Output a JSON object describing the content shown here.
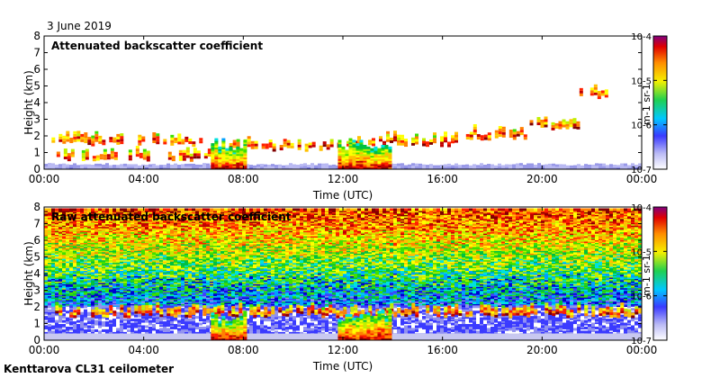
{
  "date_label": "3 June 2019",
  "footer": "Kenttarova CL31 ceilometer",
  "chart_data": [
    {
      "type": "heatmap",
      "title": "Attenuated backscatter coefficient",
      "xlabel": "Time (UTC)",
      "ylabel": "Height (km)",
      "xlim": [
        0,
        24
      ],
      "ylim": [
        0,
        8
      ],
      "x_ticks": [
        0,
        4,
        8,
        12,
        16,
        20,
        24
      ],
      "x_tick_labels": [
        "00:00",
        "04:00",
        "08:00",
        "12:00",
        "16:00",
        "20:00",
        "00:00"
      ],
      "y_ticks": [
        0,
        1,
        2,
        3,
        4,
        5,
        6,
        7,
        8
      ],
      "y_tick_labels": [
        "0",
        "1",
        "2",
        "3",
        "4",
        "5",
        "6",
        "7",
        "8"
      ],
      "colorbar": {
        "scale": "log",
        "range": [
          1e-07,
          0.0001
        ],
        "tick_labels": [
          "10-7",
          "10-6",
          "10-5",
          "10-4"
        ],
        "unit_label": "m-1 sr-1"
      },
      "features": [
        {
          "name": "boundary layer",
          "t_start": 0,
          "t_end": 24,
          "h_top_km": 0.3
        },
        {
          "name": "cloud layer",
          "t_start": 0.3,
          "t_end": 6.5,
          "h_km": 1.6
        },
        {
          "name": "low cloud",
          "t_start": 0.5,
          "t_end": 7.0,
          "h_km": 0.7
        },
        {
          "name": "cloud layer",
          "t_start": 7.0,
          "t_end": 12.0,
          "h_km": 1.3
        },
        {
          "name": "precipitation",
          "t_start": 6.7,
          "t_end": 8.1,
          "h_km": 0.5
        },
        {
          "name": "cloud layer",
          "t_start": 12.0,
          "t_end": 16.5,
          "h_km": 1.6
        },
        {
          "name": "precipitation",
          "t_start": 11.8,
          "t_end": 13.9,
          "h_km": 0.5
        },
        {
          "name": "cloud layer",
          "t_start": 16.8,
          "t_end": 19.5,
          "h_km": 2.0
        },
        {
          "name": "cloud layer",
          "t_start": 19.5,
          "t_end": 21.5,
          "h_km": 2.6
        },
        {
          "name": "high cloud",
          "t_start": 21.5,
          "t_end": 22.8,
          "h_km": 4.4
        }
      ]
    },
    {
      "type": "heatmap",
      "title": "Raw attenuated backscatter coefficient",
      "xlabel": "Time (UTC)",
      "ylabel": "Height (km)",
      "xlim": [
        0,
        24
      ],
      "ylim": [
        0,
        8
      ],
      "x_ticks": [
        0,
        4,
        8,
        12,
        16,
        20,
        24
      ],
      "x_tick_labels": [
        "00:00",
        "04:00",
        "08:00",
        "12:00",
        "16:00",
        "20:00",
        "00:00"
      ],
      "y_ticks": [
        0,
        1,
        2,
        3,
        4,
        5,
        6,
        7,
        8
      ],
      "y_tick_labels": [
        "0",
        "1",
        "2",
        "3",
        "4",
        "5",
        "6",
        "7",
        "8"
      ],
      "colorbar": {
        "scale": "log",
        "range": [
          1e-07,
          0.0001
        ],
        "tick_labels": [
          "10-7",
          "10-6",
          "10-5",
          "10-4"
        ],
        "unit_label": "m-1 sr-1"
      },
      "features": [
        {
          "name": "noise background",
          "t_start": 0,
          "t_end": 24,
          "h_from_km": 2.0,
          "h_to_km": 7.8
        },
        {
          "name": "cloud layer",
          "t_start": 0.3,
          "t_end": 24,
          "h_km": 1.6
        },
        {
          "name": "precipitation",
          "t_start": 6.7,
          "t_end": 8.1,
          "h_km": 0.5
        },
        {
          "name": "precipitation",
          "t_start": 11.8,
          "t_end": 13.9,
          "h_km": 0.5
        }
      ]
    }
  ]
}
